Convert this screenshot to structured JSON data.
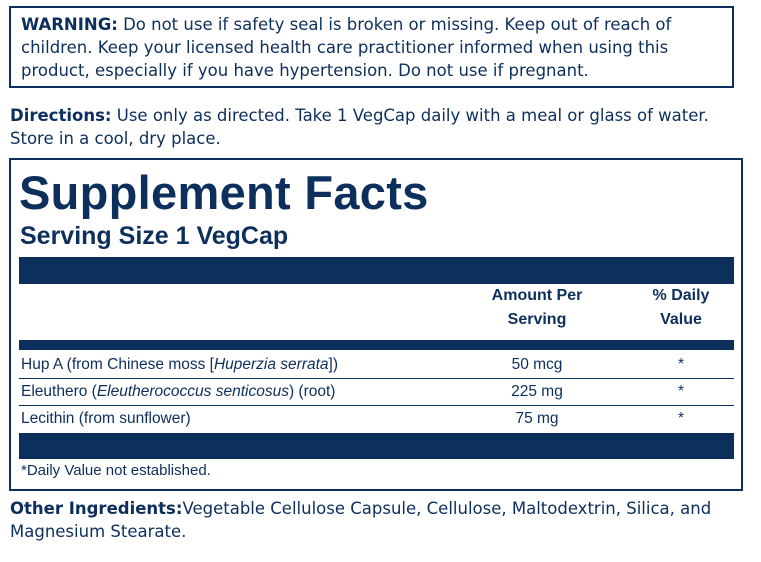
{
  "warning": {
    "label": "WARNING:",
    "text": " Do not use if safety seal is broken or missing. Keep out of reach of children. Keep your licensed health care practitioner informed when using this product, especially if you have hypertension. Do not use if pregnant."
  },
  "directions": {
    "label": "Directions:",
    "text": " Use only as directed. Take 1 VegCap daily with a meal or glass of water. Store in a cool, dry place."
  },
  "facts": {
    "title": "Supplement Facts",
    "serving_size": "Serving Size 1 VegCap",
    "headers": {
      "amount_line1": "Amount Per",
      "amount_line2": "Serving",
      "dv_line1": "% Daily",
      "dv_line2": "Value"
    },
    "rows": [
      {
        "name_pre": "Hup A (from Chinese moss [",
        "name_italic": "Huperzia serrata",
        "name_post": "])",
        "amount": "50 mcg",
        "dv": "*"
      },
      {
        "name_pre": "Eleuthero (",
        "name_italic": "Eleutherococcus senticosus",
        "name_post": ") (root)",
        "amount": "225 mg",
        "dv": "*"
      },
      {
        "name_pre": "Lecithin (from sunflower)",
        "name_italic": "",
        "name_post": "",
        "amount": "75 mg",
        "dv": "*"
      }
    ],
    "footnote": "*Daily Value not established."
  },
  "other_ingredients": {
    "label": "Other Ingredients:",
    "text": "Vegetable Cellulose Capsule, Cellulose, Maltodextrin, Silica, and Magnesium Stearate."
  },
  "colors": {
    "navy": "#0d2f5c",
    "background": "#ffffff"
  }
}
